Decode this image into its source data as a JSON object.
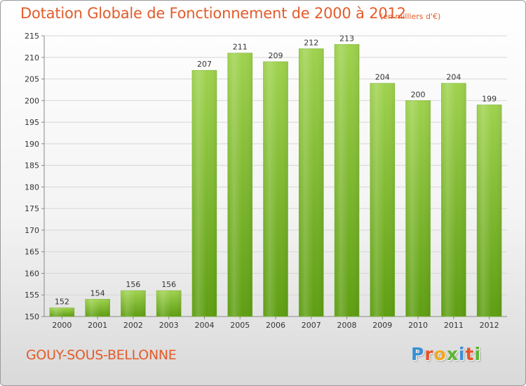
{
  "header": {
    "title": "Dotation Globale de Fonctionnement de 2000 à 2012",
    "units": "(en milliers d'€)"
  },
  "footer": {
    "commune": "GOUY-SOUS-BELLONNE",
    "logo_letters": [
      "P",
      "r",
      "o",
      "x",
      "i",
      "t",
      "i"
    ]
  },
  "colors": {
    "title": "#e35b2a",
    "bar_top": "#9fd24e",
    "bar_bottom": "#5e9e12",
    "logo": [
      "#3a8fd6",
      "#e3542b",
      "#f2a81d",
      "#5bb531",
      "#3a8fd6",
      "#e3542b",
      "#5bb531"
    ]
  },
  "chart_data": {
    "type": "bar",
    "categories": [
      "2000",
      "2001",
      "2002",
      "2003",
      "2004",
      "2005",
      "2006",
      "2007",
      "2008",
      "2009",
      "2010",
      "2011",
      "2012"
    ],
    "values": [
      152,
      154,
      156,
      156,
      207,
      211,
      209,
      212,
      213,
      204,
      200,
      204,
      199
    ],
    "title": "Dotation Globale de Fonctionnement de 2000 à 2012",
    "ylim": [
      150,
      215
    ],
    "yticks": [
      150,
      155,
      160,
      165,
      170,
      175,
      180,
      185,
      190,
      195,
      200,
      205,
      210,
      215
    ],
    "grid": true
  }
}
